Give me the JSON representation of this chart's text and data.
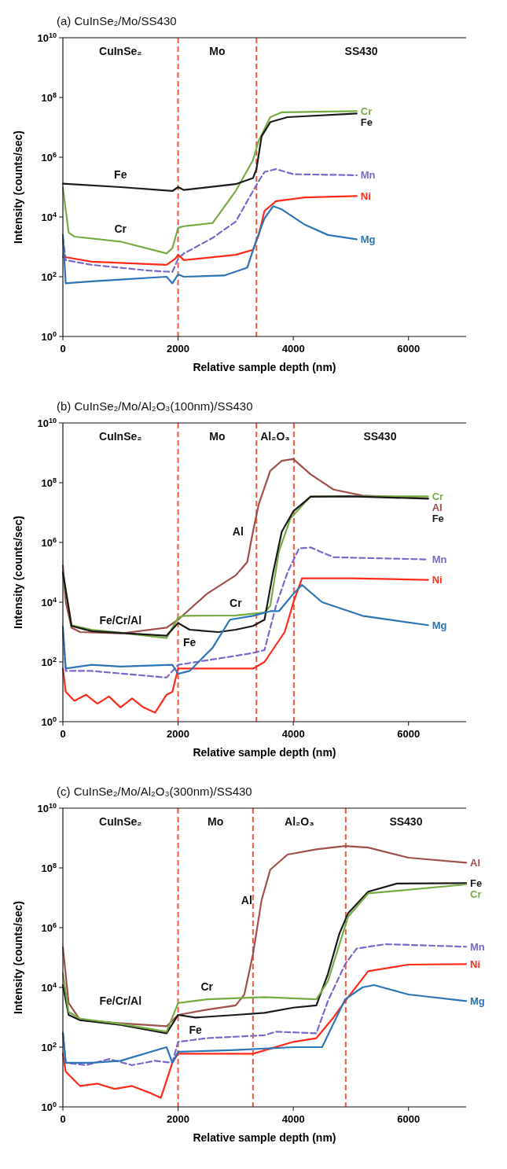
{
  "chart_data": [
    {
      "type": "line",
      "title": "(a) CuInSe₂/Mo/SS430",
      "xlabel": "Relative sample depth (nm)",
      "ylabel": "Intensity (counts/sec)",
      "log": "y",
      "xlim": [
        0,
        7000
      ],
      "xticks": [
        0,
        2000,
        4000,
        6000
      ],
      "ylim": [
        1,
        10000000000.0
      ],
      "yticks": [
        {
          "value": 1,
          "label": "10$^{0}$"
        },
        {
          "value": 100,
          "label": "10$^{2}$"
        },
        {
          "value": 10000,
          "label": "10$^{4}$"
        },
        {
          "value": 1000000,
          "label": "10$^{6}$"
        },
        {
          "value": 100000000,
          "label": "10$^{8}$"
        },
        {
          "value": 10000000000,
          "label": "10$^{10}$"
        }
      ],
      "ref_lines": [
        {
          "axis": "x",
          "value": 2000,
          "color": "#f05a3c",
          "line_style": "dashed"
        },
        {
          "axis": "x",
          "value": 3360,
          "color": "#f05a3c",
          "line_style": "dashed"
        }
      ],
      "annotations": [
        "CuInSe₂",
        "Mo",
        "SS430",
        {
          "text": "Fe",
          "x": 1000,
          "y": 100000
        },
        {
          "text": "Cr",
          "x": 1000,
          "y": 1500
        }
      ],
      "series": [
        {
          "name": "Cr",
          "color": "#77ab43",
          "x": [
            0,
            100,
            200,
            1000,
            1800,
            1900,
            2000,
            2100,
            2600,
            3000,
            3300,
            3400,
            3600,
            3800,
            5100
          ],
          "values": [
            95000,
            3000,
            2200,
            1500,
            600,
            900,
            4300,
            4900,
            6300,
            74000,
            800000,
            3600000,
            22000000,
            32000000,
            35000000
          ]
        },
        {
          "name": "Fe",
          "color": "#1a1a1a",
          "x": [
            0,
            1000,
            1900,
            2000,
            2100,
            3000,
            3300,
            3360,
            3450,
            3600,
            3900,
            5100
          ],
          "values": [
            130000,
            100000,
            74000,
            100000,
            80000,
            126000,
            200000,
            400000,
            5000000,
            15000000,
            22000000,
            29000000
          ]
        },
        {
          "name": "Mn",
          "color": "#7b68c8",
          "line_style": "dashed",
          "x": [
            0,
            50,
            500,
            1500,
            1900,
            2000,
            2100,
            2600,
            3000,
            3300,
            3400,
            3500,
            3700,
            4000,
            5100
          ],
          "values": [
            2000,
            360,
            250,
            160,
            145,
            400,
            600,
            2000,
            7000,
            74000,
            160000,
            320000,
            400000,
            270000,
            250000
          ]
        },
        {
          "name": "Ni",
          "color": "#ff2a1a",
          "x": [
            0,
            500,
            1800,
            1950,
            2000,
            2100,
            3000,
            3300,
            3400,
            3500,
            3700,
            4200,
            5100
          ],
          "values": [
            470,
            320,
            250,
            400,
            540,
            360,
            540,
            800,
            2500,
            16000,
            34000,
            45000,
            50000
          ]
        },
        {
          "name": "Mg",
          "color": "#2e75b6",
          "x": [
            0,
            50,
            500,
            1000,
            1800,
            1900,
            2000,
            2100,
            2800,
            3200,
            3350,
            3500,
            3650,
            3800,
            4200,
            4600,
            5100
          ],
          "values": [
            2500,
            60,
            70,
            80,
            100,
            60,
            120,
            100,
            110,
            200,
            1500,
            9000,
            23000,
            18000,
            5500,
            2500,
            1800
          ]
        }
      ]
    },
    {
      "type": "line",
      "title": "(b) CuInSe₂/Mo/Al₂O₃(100nm)/SS430",
      "xlabel": "Relative sample depth (nm)",
      "ylabel": "Intensity (counts/sec)",
      "log": "y",
      "xlim": [
        0,
        7000
      ],
      "xticks": [
        0,
        2000,
        4000,
        6000
      ],
      "ylim": [
        1,
        10000000000.0
      ],
      "yticks": [
        {
          "value": 1,
          "label": "10$^{0}$"
        },
        {
          "value": 100,
          "label": "10$^{2}$"
        },
        {
          "value": 10000,
          "label": "10$^{4}$"
        },
        {
          "value": 1000000,
          "label": "10$^{6}$"
        },
        {
          "value": 100000000,
          "label": "10$^{8}$"
        },
        {
          "value": 10000000000,
          "label": "10$^{10}$"
        }
      ],
      "ref_lines": [
        {
          "axis": "x",
          "value": 2000,
          "color": "#f05a3c",
          "line_style": "dashed"
        },
        {
          "axis": "x",
          "value": 3360,
          "color": "#f05a3c",
          "line_style": "dashed"
        },
        {
          "axis": "x",
          "value": 4010,
          "color": "#f05a3c",
          "line_style": "dashed"
        }
      ],
      "annotations": [
        "CuInSe₂",
        "Mo",
        "Al₂O₃",
        "SS430",
        {
          "text": "Fe/Cr/Al",
          "x": 1000,
          "y": 950
        },
        {
          "text": "Cr",
          "x": 3000,
          "y": 3600
        },
        {
          "text": "Fe",
          "x": 2200,
          "y": 1200
        },
        {
          "text": "Al",
          "x": 3300,
          "y": 2300000
        }
      ],
      "series": [
        {
          "name": "Al",
          "color": "#a0504a",
          "x": [
            0,
            50,
            150,
            300,
            1000,
            1800,
            2000,
            2500,
            3000,
            3200,
            3300,
            3400,
            3600,
            3800,
            4000,
            4300,
            4700,
            5200,
            6340
          ],
          "values": [
            170000,
            10000,
            1400,
            1000,
            900,
            1400,
            2600,
            19000,
            79000,
            220000,
            2300000,
            19000000,
            250000000,
            540000000,
            620000000,
            190000000,
            59000000,
            37000000,
            30000000
          ]
        },
        {
          "name": "Cr",
          "color": "#77ab43",
          "x": [
            0,
            150,
            500,
            1000,
            1800,
            2000,
            2100,
            3000,
            3500,
            3600,
            3750,
            3950,
            4300,
            6340
          ],
          "values": [
            100000,
            1700,
            1200,
            950,
            630,
            3000,
            3500,
            3600,
            4500,
            7600,
            500000,
            6300000,
            35000000,
            35000000
          ]
        },
        {
          "name": "Fe",
          "color": "#1a1a1a",
          "x": [
            0,
            150,
            500,
            1000,
            1800,
            2000,
            2200,
            2700,
            3000,
            3300,
            3500,
            3650,
            3800,
            4000,
            4300,
            5000,
            6340
          ],
          "values": [
            100000,
            1600,
            1070,
            930,
            760,
            2000,
            1200,
            1000,
            1200,
            1600,
            2600,
            100000,
            2300000,
            11000000,
            34000000,
            35000000,
            29000000
          ]
        },
        {
          "name": "Mn",
          "color": "#7b68c8",
          "line_style": "dashed",
          "x": [
            0,
            50,
            500,
            1800,
            2000,
            3000,
            3300,
            3500,
            3700,
            3900,
            4100,
            4300,
            4700,
            6340
          ],
          "values": [
            1000,
            50,
            50,
            30,
            80,
            160,
            200,
            250,
            7600,
            100000,
            630000,
            680000,
            320000,
            270000
          ]
        },
        {
          "name": "Ni",
          "color": "#ff2a1a",
          "x": [
            0,
            50,
            200,
            400,
            600,
            800,
            1000,
            1200,
            1400,
            1600,
            1800,
            1900,
            2000,
            3300,
            3500,
            3850,
            4010,
            4150,
            5000,
            6340
          ],
          "values": [
            60,
            10,
            5,
            8,
            4,
            7,
            3,
            6,
            3,
            2,
            8,
            10,
            60,
            60,
            100,
            1000,
            11000,
            63000,
            63000,
            56000
          ]
        },
        {
          "name": "Mg",
          "color": "#2e75b6",
          "x": [
            0,
            50,
            500,
            1000,
            1900,
            2000,
            2200,
            2600,
            2900,
            3300,
            3600,
            3750,
            4000,
            4150,
            4500,
            5200,
            6340
          ],
          "values": [
            1500,
            60,
            80,
            70,
            80,
            40,
            50,
            300,
            2600,
            3500,
            5000,
            5000,
            19000,
            38000,
            10000,
            3500,
            1700
          ]
        }
      ]
    },
    {
      "type": "line",
      "title": "(c) CuInSe₂/Mo/Al₂O₃(300nm)/SS430",
      "xlabel": "Relative sample depth (nm)",
      "ylabel": "Intensity (counts/sec)",
      "log": "y",
      "xlim": [
        0,
        7000
      ],
      "xticks": [
        0,
        2000,
        4000,
        6000
      ],
      "ylim": [
        1,
        10000000000.0
      ],
      "yticks": [
        {
          "value": 1,
          "label": "10$^{0}$"
        },
        {
          "value": 100,
          "label": "10$^{2}$"
        },
        {
          "value": 10000,
          "label": "10$^{4}$"
        },
        {
          "value": 1000000,
          "label": "10$^{6}$"
        },
        {
          "value": 100000000,
          "label": "10$^{8}$"
        },
        {
          "value": 10000000000,
          "label": "10$^{10}$"
        }
      ],
      "ref_lines": [
        {
          "axis": "x",
          "value": 2000,
          "color": "#f05a3c",
          "line_style": "dashed"
        },
        {
          "axis": "x",
          "value": 3300,
          "color": "#f05a3c",
          "line_style": "dashed"
        },
        {
          "axis": "x",
          "value": 4910,
          "color": "#f05a3c",
          "line_style": "dashed"
        }
      ],
      "annotations": [
        "CuInSe₂",
        "Mo",
        "Al₂O₃",
        "SS430",
        {
          "text": "Fe/Cr/Al",
          "x": 1000,
          "y": 560
        },
        {
          "text": "Cr",
          "x": 2500,
          "y": 4000
        },
        {
          "text": "Fe",
          "x": 2300,
          "y": 980
        },
        {
          "text": "Al",
          "x": 3450,
          "y": 8500000
        }
      ],
      "series": [
        {
          "name": "Al",
          "color": "#a0504a",
          "x": [
            0,
            100,
            300,
            1000,
            1800,
            2000,
            2500,
            3000,
            3150,
            3300,
            3450,
            3600,
            3900,
            4400,
            4900,
            5300,
            6000,
            7000
          ],
          "values": [
            220000,
            3000,
            800,
            630,
            500,
            1200,
            1800,
            2500,
            5800,
            130000,
            8500000,
            87000000,
            280000000,
            420000000,
            540000000,
            480000000,
            220000000,
            150000000
          ]
        },
        {
          "name": "Fe",
          "color": "#1a1a1a",
          "x": [
            0,
            100,
            300,
            1000,
            1800,
            2000,
            2300,
            3000,
            3500,
            4000,
            4400,
            4600,
            4800,
            4950,
            5300,
            5800,
            7000
          ],
          "values": [
            12000,
            1200,
            800,
            560,
            290,
            1200,
            980,
            1200,
            1400,
            2100,
            2500,
            28000,
            630000,
            3000000,
            16000000,
            30000000,
            31000000
          ]
        },
        {
          "name": "Cr",
          "color": "#77ab43",
          "x": [
            0,
            100,
            300,
            1000,
            1800,
            2000,
            2500,
            3500,
            4400,
            4600,
            4950,
            5300,
            7000
          ],
          "values": [
            30000,
            1500,
            900,
            600,
            330,
            3000,
            4000,
            4700,
            4000,
            16000,
            2300000,
            14000000,
            28000000
          ]
        },
        {
          "name": "Mn",
          "color": "#7b68c8",
          "line_style": "dashed",
          "x": [
            0,
            50,
            400,
            800,
            1200,
            1600,
            1900,
            2000,
            2500,
            3500,
            3700,
            4400,
            4600,
            4900,
            5100,
            5600,
            7000
          ],
          "values": [
            300,
            30,
            25,
            40,
            25,
            35,
            30,
            150,
            200,
            250,
            330,
            290,
            3500,
            60000,
            200000,
            280000,
            230000
          ]
        },
        {
          "name": "Ni",
          "color": "#ff2a1a",
          "x": [
            0,
            50,
            300,
            600,
            900,
            1200,
            1500,
            1700,
            1900,
            2000,
            3300,
            4000,
            4400,
            4700,
            4900,
            5300,
            6000,
            7000
          ],
          "values": [
            60,
            15,
            5,
            6,
            4,
            5,
            3,
            2,
            30,
            60,
            60,
            150,
            200,
            1000,
            3500,
            35000,
            58000,
            60000
          ]
        },
        {
          "name": "Mg",
          "color": "#2e75b6",
          "x": [
            0,
            50,
            500,
            1000,
            1800,
            1900,
            2000,
            3000,
            4000,
            4500,
            4900,
            5200,
            5400,
            6000,
            7000
          ],
          "values": [
            300,
            30,
            30,
            35,
            100,
            30,
            70,
            80,
            100,
            100,
            4000,
            10000,
            12000,
            5800,
            3500
          ]
        }
      ]
    }
  ]
}
